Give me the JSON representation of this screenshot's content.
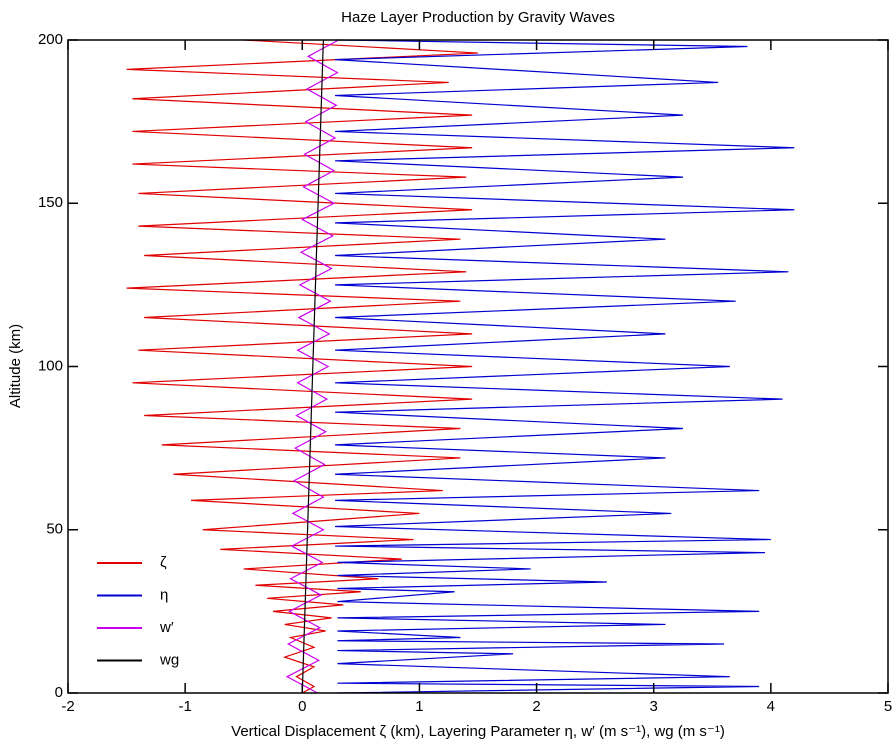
{
  "chart_data": {
    "type": "line",
    "title": "Haze Layer Production by Gravity Waves",
    "xlabel": "Vertical Displacement ζ (km), Layering Parameter η, w′ (m s⁻¹), wg (m s⁻¹)",
    "ylabel": "Altitude (km)",
    "xlim": [
      -2,
      5
    ],
    "xticks": [
      -2,
      -1,
      0,
      1,
      2,
      3,
      4,
      5
    ],
    "ylim": [
      0,
      200
    ],
    "yticks": [
      0,
      50,
      100,
      150,
      200
    ],
    "legend": "lower left",
    "series": [
      {
        "name": "ζ",
        "color": "#e00000",
        "altitude": [
          200,
          196,
          191,
          187,
          182,
          177,
          172,
          167,
          162,
          158,
          153,
          148,
          143,
          139,
          134,
          129,
          124,
          120,
          115,
          110,
          105,
          100,
          95,
          90,
          85,
          81,
          76,
          72,
          67,
          62,
          59,
          55,
          50,
          47,
          44,
          41,
          38,
          35,
          33,
          31,
          29,
          27,
          25,
          23,
          21,
          19,
          17,
          14,
          11,
          8,
          5,
          2,
          0
        ],
        "values": [
          -0.5,
          1.5,
          -1.5,
          1.25,
          -1.45,
          1.45,
          -1.45,
          1.45,
          -1.45,
          1.4,
          -1.4,
          1.45,
          -1.4,
          1.35,
          -1.35,
          1.4,
          -1.5,
          1.35,
          -1.35,
          1.45,
          -1.4,
          1.45,
          -1.45,
          1.45,
          -1.35,
          1.35,
          -1.2,
          1.35,
          -1.1,
          1.2,
          -0.95,
          1.0,
          -0.85,
          0.95,
          -0.7,
          0.85,
          -0.5,
          0.65,
          -0.4,
          0.5,
          -0.3,
          0.35,
          -0.25,
          0.25,
          -0.15,
          0.2,
          -0.1,
          0.1,
          -0.15,
          0.1,
          -0.05,
          0.1,
          0.0
        ]
      },
      {
        "name": "η",
        "color": "#0000d0",
        "altitude": [
          200,
          198,
          194,
          187,
          183,
          177,
          172,
          167,
          163,
          158,
          153,
          148,
          144,
          139,
          134,
          129,
          125,
          120,
          115,
          110,
          105,
          100,
          95,
          90,
          86,
          81,
          76,
          72,
          67,
          62,
          59,
          55,
          51,
          47,
          45,
          43,
          40,
          38,
          36,
          34,
          32,
          31,
          28,
          25,
          23,
          21,
          19,
          17,
          16,
          15,
          13,
          12,
          9,
          5,
          3,
          2,
          0
        ],
        "values": [
          0.3,
          3.8,
          0.28,
          3.55,
          0.28,
          3.25,
          0.28,
          4.2,
          0.28,
          3.25,
          0.28,
          4.2,
          0.28,
          3.1,
          0.28,
          4.15,
          0.28,
          3.7,
          0.28,
          3.1,
          0.28,
          3.65,
          0.28,
          4.1,
          0.28,
          3.25,
          0.28,
          3.1,
          0.28,
          3.9,
          0.28,
          3.15,
          0.28,
          4.0,
          0.28,
          3.95,
          0.3,
          1.95,
          0.3,
          2.6,
          0.3,
          1.3,
          0.3,
          3.9,
          0.3,
          3.1,
          0.3,
          1.35,
          0.3,
          3.6,
          0.3,
          1.8,
          0.3,
          3.65,
          0.3,
          3.9,
          0.3
        ]
      },
      {
        "name": "w′",
        "color": "#cc00ee",
        "altitude": [
          0,
          5,
          10,
          15,
          20,
          25,
          30,
          35,
          40,
          45,
          50,
          55,
          60,
          65,
          70,
          75,
          80,
          85,
          90,
          95,
          100,
          105,
          110,
          115,
          120,
          125,
          130,
          135,
          140,
          145,
          150,
          155,
          160,
          165,
          170,
          175,
          180,
          185,
          190,
          195,
          200
        ],
        "values": [
          0.13,
          -0.13,
          0.14,
          -0.12,
          0.15,
          -0.11,
          0.16,
          -0.1,
          0.17,
          -0.09,
          0.18,
          -0.08,
          0.18,
          -0.07,
          0.19,
          -0.06,
          0.2,
          -0.05,
          0.21,
          -0.04,
          0.22,
          -0.04,
          0.23,
          -0.03,
          0.24,
          -0.02,
          0.25,
          -0.01,
          0.26,
          0.0,
          0.27,
          0.01,
          0.27,
          0.02,
          0.28,
          0.03,
          0.29,
          0.04,
          0.3,
          0.05,
          0.31
        ]
      },
      {
        "name": "wg",
        "color": "#000000",
        "altitude": [
          0,
          200
        ],
        "values": [
          0.0,
          0.18
        ]
      }
    ]
  }
}
